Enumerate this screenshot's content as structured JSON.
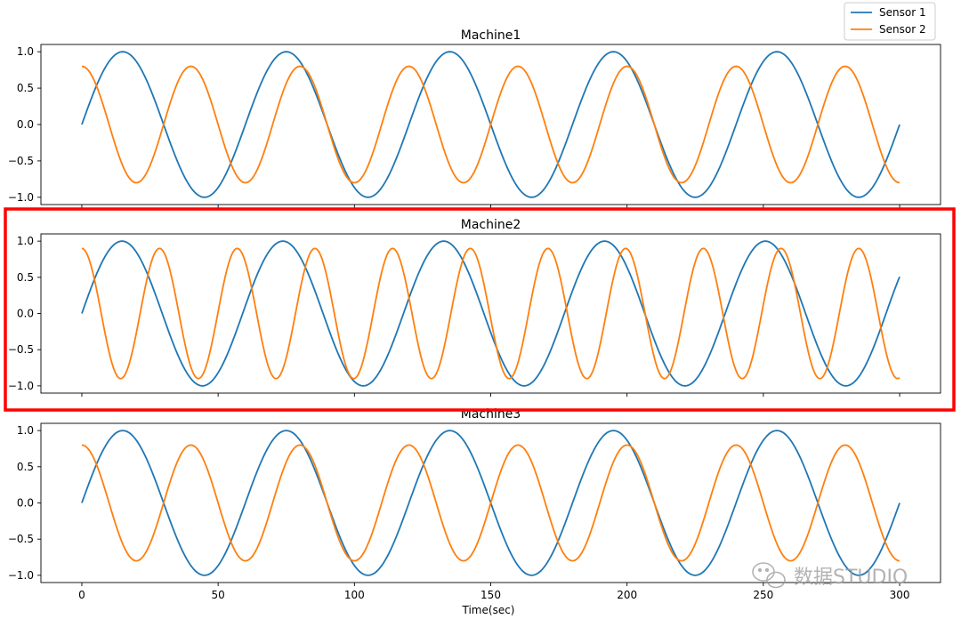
{
  "legend": {
    "placement": "top-right",
    "entries": [
      {
        "label": "Sensor 1",
        "color": "#1f77b4"
      },
      {
        "label": "Sensor 2",
        "color": "#ff7f0e"
      }
    ]
  },
  "highlight": {
    "target": "Machine2",
    "color": "#ff0000"
  },
  "watermark": "数据STUDIO",
  "chart_data": [
    {
      "type": "line",
      "title": "Machine1",
      "xlabel": "",
      "ylabel": "",
      "xlim": [
        -15,
        315
      ],
      "ylim": [
        -1.1,
        1.1
      ],
      "yticks": [
        1.0,
        0.5,
        0.0,
        -0.5,
        -1.0
      ],
      "ytick_labels": [
        "1.0",
        "0.5",
        "0.0",
        "−0.5",
        "−1.0"
      ],
      "grid": false,
      "series": [
        {
          "name": "Sensor 1",
          "color": "#1f77b4",
          "function": "sin",
          "amplitude": 1.0,
          "period": 60,
          "phase": 0,
          "x": [
            0,
            15,
            30,
            45,
            60,
            75,
            90,
            105,
            120,
            135,
            150,
            165,
            180,
            195,
            210,
            225,
            240,
            255,
            270,
            285,
            300
          ],
          "y": [
            0,
            1.0,
            0,
            -1.0,
            0,
            1.0,
            0,
            -1.0,
            0,
            1.0,
            0,
            -1.0,
            0,
            1.0,
            0,
            -1.0,
            0,
            1.0,
            0,
            -1.0,
            -0.1
          ]
        },
        {
          "name": "Sensor 2",
          "color": "#ff7f0e",
          "function": "cos",
          "amplitude": 0.8,
          "period": 40,
          "phase": 0,
          "x": [
            0,
            20,
            40,
            60,
            80,
            100,
            120,
            140,
            160,
            180,
            200,
            220,
            240,
            260,
            280,
            300
          ],
          "y": [
            0.8,
            -0.8,
            0.8,
            -0.8,
            0.8,
            -0.8,
            0.8,
            -0.8,
            0.8,
            -0.8,
            0.8,
            -0.8,
            0.8,
            -0.8,
            0.8,
            -0.8
          ]
        }
      ]
    },
    {
      "type": "line",
      "title": "Machine2",
      "xlabel": "",
      "ylabel": "",
      "xlim": [
        -15,
        315
      ],
      "ylim": [
        -1.1,
        1.1
      ],
      "yticks": [
        1.0,
        0.5,
        0.0,
        -0.5,
        -1.0
      ],
      "ytick_labels": [
        "1.0",
        "0.5",
        "0.0",
        "−0.5",
        "−1.0"
      ],
      "grid": false,
      "series": [
        {
          "name": "Sensor 1",
          "color": "#1f77b4",
          "function": "sin",
          "amplitude": 1.0,
          "period": 59,
          "phase": 0,
          "x": [
            0,
            15,
            45,
            75,
            104,
            134,
            163,
            193,
            222,
            252,
            300
          ],
          "y": [
            0,
            1.0,
            -1.0,
            1.0,
            -1.0,
            1.0,
            -1.0,
            1.0,
            -1.0,
            1.0,
            0.5
          ]
        },
        {
          "name": "Sensor 2",
          "color": "#ff7f0e",
          "function": "cos",
          "amplitude": 0.9,
          "period": 28.5,
          "phase": 0,
          "x": [
            0,
            14,
            28.5,
            43,
            57,
            71,
            85.5,
            100,
            114,
            128,
            142.5,
            157,
            171,
            185,
            199.5,
            214,
            228,
            242,
            256.5,
            271,
            285,
            299
          ],
          "y": [
            0.9,
            -0.9,
            0.9,
            -0.9,
            0.9,
            -0.9,
            0.9,
            -0.9,
            0.9,
            -0.9,
            0.9,
            -0.9,
            0.9,
            -0.9,
            0.9,
            -0.9,
            0.9,
            -0.9,
            0.9,
            -0.9,
            0.9,
            -0.9
          ]
        }
      ]
    },
    {
      "type": "line",
      "title": "Machine3",
      "xlabel": "Time(sec)",
      "ylabel": "",
      "xlim": [
        -15,
        315
      ],
      "ylim": [
        -1.1,
        1.1
      ],
      "xticks": [
        0,
        50,
        100,
        150,
        200,
        250,
        300
      ],
      "xtick_labels": [
        "0",
        "50",
        "100",
        "150",
        "200",
        "250",
        "300"
      ],
      "yticks": [
        1.0,
        0.5,
        0.0,
        -0.5,
        -1.0
      ],
      "ytick_labels": [
        "1.0",
        "0.5",
        "0.0",
        "−0.5",
        "−1.0"
      ],
      "grid": false,
      "series": [
        {
          "name": "Sensor 1",
          "color": "#1f77b4",
          "function": "sin",
          "amplitude": 1.0,
          "period": 60,
          "phase": 0,
          "x": [
            0,
            15,
            30,
            45,
            60,
            75,
            90,
            105,
            120,
            135,
            150,
            165,
            180,
            195,
            210,
            225,
            240,
            255,
            270,
            285,
            300
          ],
          "y": [
            0,
            1.0,
            0,
            -1.0,
            0,
            1.0,
            0,
            -1.0,
            0,
            1.0,
            0,
            -1.0,
            0,
            1.0,
            0,
            -1.0,
            0,
            1.0,
            0,
            -1.0,
            -0.1
          ]
        },
        {
          "name": "Sensor 2",
          "color": "#ff7f0e",
          "function": "cos",
          "amplitude": 0.8,
          "period": 40,
          "phase": 0,
          "x": [
            0,
            20,
            40,
            60,
            80,
            100,
            120,
            140,
            160,
            180,
            200,
            220,
            240,
            260,
            280,
            300
          ],
          "y": [
            0.8,
            -0.8,
            0.8,
            -0.8,
            0.8,
            -0.8,
            0.8,
            -0.8,
            0.8,
            -0.8,
            0.8,
            -0.8,
            0.8,
            -0.8,
            0.8,
            -0.8
          ]
        }
      ]
    }
  ]
}
